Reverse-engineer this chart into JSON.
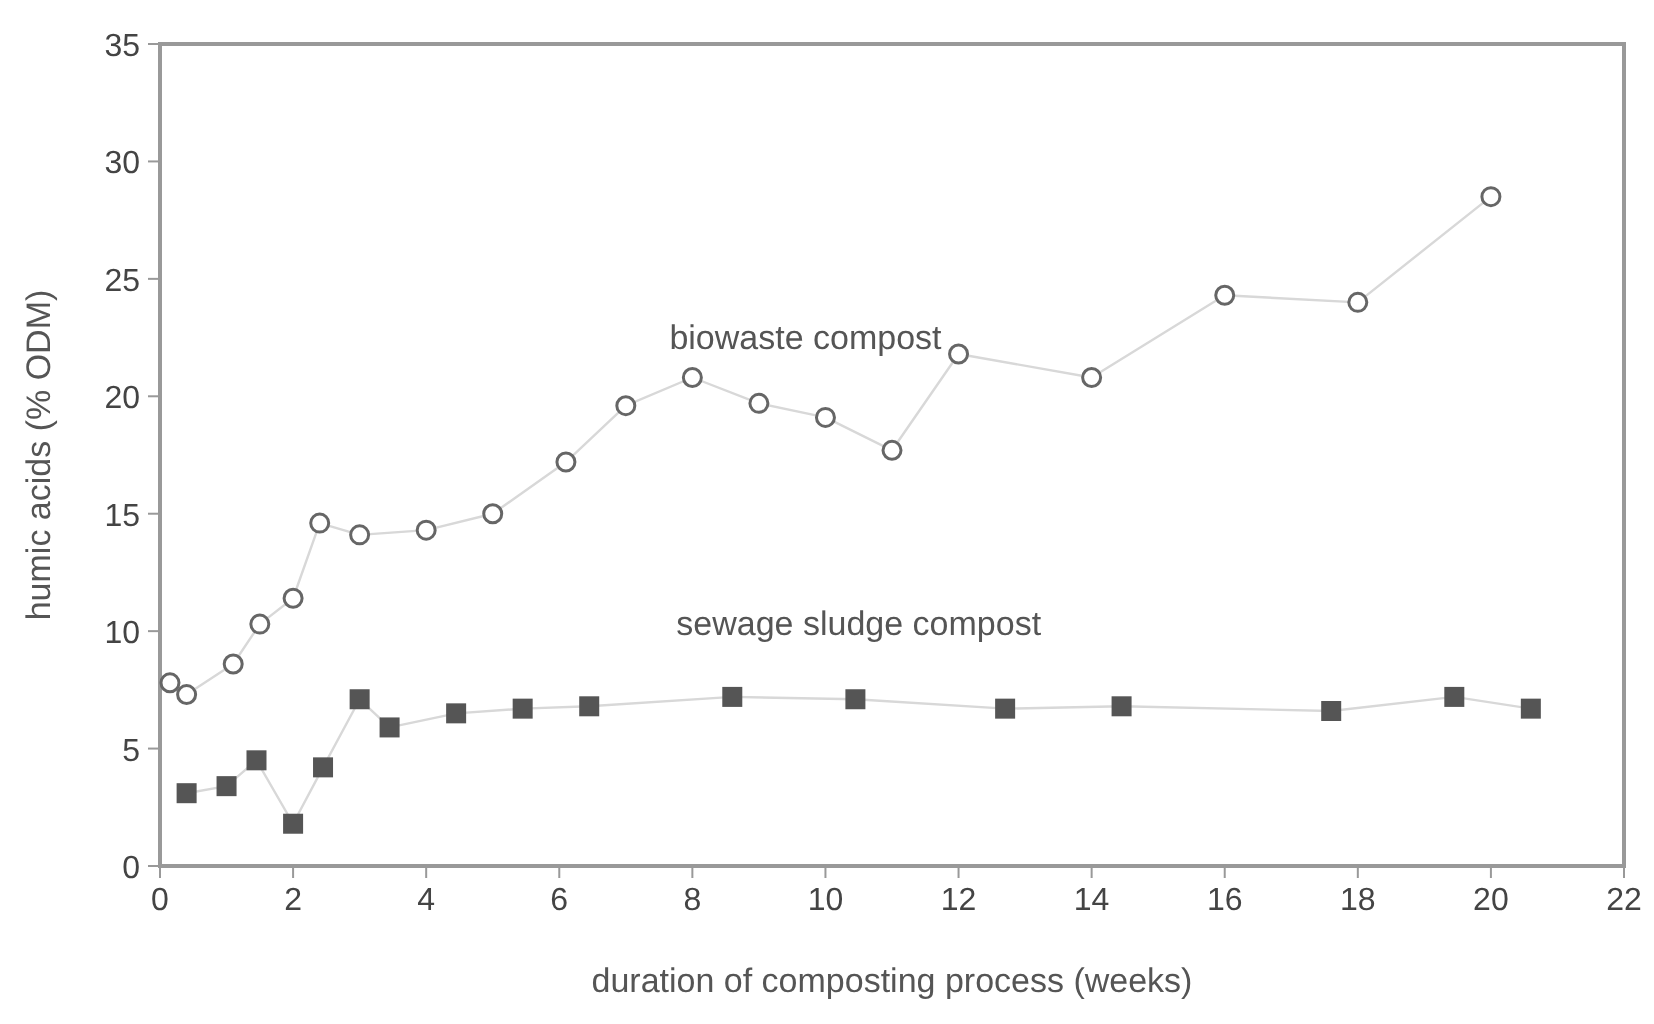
{
  "chart_data": {
    "type": "line",
    "xlabel": "duration of composting process (weeks)",
    "ylabel": "humic acids (% ODM)",
    "xlim": [
      0,
      22
    ],
    "xticks": [
      0,
      2,
      4,
      6,
      8,
      10,
      12,
      14,
      16,
      18,
      20,
      22
    ],
    "ylim": [
      0,
      35
    ],
    "yticks": [
      0,
      5,
      10,
      15,
      20,
      25,
      30,
      35
    ],
    "grid": false,
    "series": [
      {
        "name": "biowaste compost",
        "color": "#666666",
        "marker": "circle",
        "x": [
          0.15,
          0.4,
          1.1,
          1.5,
          2,
          2.4,
          3,
          4,
          5,
          6.1,
          7,
          8,
          9,
          10,
          11,
          12,
          14,
          16,
          18,
          20
        ],
        "values": [
          7.8,
          7.3,
          8.6,
          10.3,
          11.4,
          14.6,
          14.1,
          14.3,
          15.0,
          17.2,
          19.6,
          20.8,
          19.7,
          19.1,
          17.7,
          21.8,
          20.8,
          24.3,
          24.0,
          28.5
        ]
      },
      {
        "name": "sewage sludge compost",
        "color": "#555555",
        "marker": "square",
        "x": [
          0.4,
          1,
          1.45,
          2,
          2.45,
          3,
          3.45,
          4.45,
          5.45,
          6.45,
          8.6,
          10.45,
          12.7,
          14.45,
          17.6,
          19.45,
          20.6
        ],
        "values": [
          3.1,
          3.4,
          4.5,
          1.8,
          4.2,
          7.1,
          5.9,
          6.5,
          6.7,
          6.8,
          7.2,
          7.1,
          6.7,
          6.8,
          6.6,
          7.2,
          6.7
        ]
      }
    ]
  }
}
